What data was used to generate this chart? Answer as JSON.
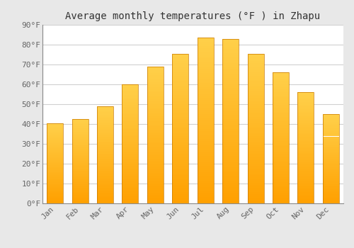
{
  "title": "Average monthly temperatures (°F ) in Zhapu",
  "months": [
    "Jan",
    "Feb",
    "Mar",
    "Apr",
    "May",
    "Jun",
    "Jul",
    "Aug",
    "Sep",
    "Oct",
    "Nov",
    "Dec"
  ],
  "values": [
    40.5,
    42.5,
    49,
    60,
    69,
    75.5,
    83.5,
    83,
    75.5,
    66,
    56,
    45
  ],
  "bar_color_top": "#FFD04A",
  "bar_color_bottom": "#FFA000",
  "bar_edge_color": "#C87800",
  "ylim": [
    0,
    90
  ],
  "yticks": [
    0,
    10,
    20,
    30,
    40,
    50,
    60,
    70,
    80,
    90
  ],
  "ytick_labels": [
    "0°F",
    "10°F",
    "20°F",
    "30°F",
    "40°F",
    "50°F",
    "60°F",
    "70°F",
    "80°F",
    "90°F"
  ],
  "plot_bg_color": "#ffffff",
  "fig_bg_color": "#e8e8e8",
  "grid_color": "#d0d0d0",
  "title_fontsize": 10,
  "tick_fontsize": 8,
  "bar_width": 0.65
}
